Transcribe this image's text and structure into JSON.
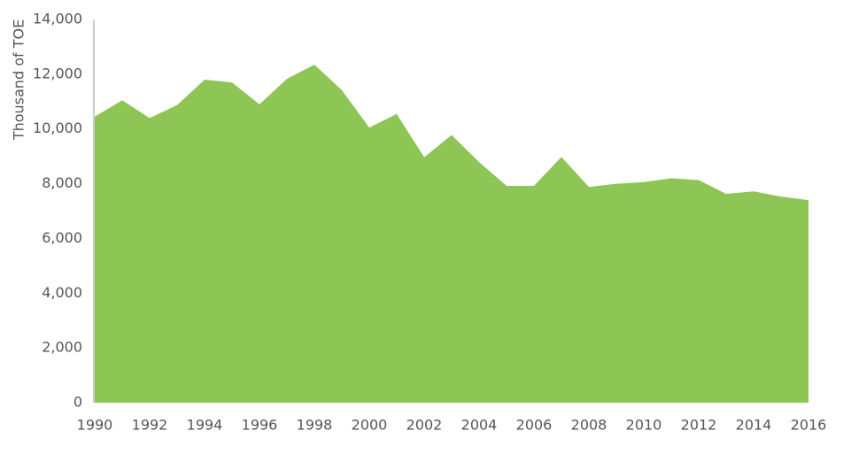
{
  "chart_data": {
    "type": "area",
    "y_label": "Thousand of TOE",
    "x": [
      1990,
      1991,
      1992,
      1993,
      1994,
      1995,
      1996,
      1997,
      1998,
      1999,
      2000,
      2001,
      2002,
      2003,
      2004,
      2005,
      2006,
      2007,
      2008,
      2009,
      2010,
      2011,
      2012,
      2013,
      2014,
      2015,
      2016
    ],
    "values": [
      10450,
      11050,
      10400,
      10870,
      11800,
      11700,
      10900,
      11830,
      12350,
      11420,
      10050,
      10550,
      8970,
      9780,
      8790,
      7920,
      7920,
      8980,
      7880,
      8000,
      8060,
      8200,
      8130,
      7630,
      7720,
      7530,
      7400
    ],
    "color": "#8dc655",
    "xlim": [
      1990,
      2016
    ],
    "xticks": [
      1990,
      1992,
      1994,
      1996,
      1998,
      2000,
      2002,
      2004,
      2006,
      2008,
      2010,
      2012,
      2014,
      2016
    ],
    "ylim": [
      0,
      14000
    ],
    "yticks": [
      0,
      {
        "value": 2000,
        "label": "2,000"
      },
      {
        "value": 4000,
        "label": "4,000"
      },
      {
        "value": 6000,
        "label": "6,000"
      },
      {
        "value": 8000,
        "label": "8,000"
      },
      {
        "value": 10000,
        "label": "10,000"
      },
      {
        "value": 12000,
        "label": "12,000"
      },
      {
        "value": 14000,
        "label": "14,000"
      }
    ]
  }
}
